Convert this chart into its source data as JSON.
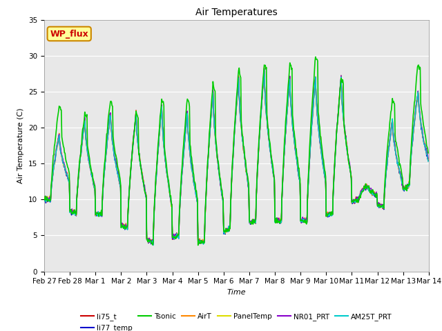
{
  "title": "Air Temperatures",
  "xlabel": "Time",
  "ylabel": "Air Temperature (C)",
  "ylim": [
    0,
    35
  ],
  "series": {
    "li75_t": {
      "color": "#cc0000",
      "lw": 1.0
    },
    "li77_temp": {
      "color": "#0000cc",
      "lw": 1.0
    },
    "Tsonic": {
      "color": "#00cc00",
      "lw": 1.2
    },
    "AirT": {
      "color": "#ff8800",
      "lw": 1.0
    },
    "PanelTemp": {
      "color": "#dddd00",
      "lw": 1.0
    },
    "NR01_PRT": {
      "color": "#8800cc",
      "lw": 1.0
    },
    "AM25T_PRT": {
      "color": "#00cccc",
      "lw": 1.0
    }
  },
  "annotation_text": "WP_flux",
  "annotation_color": "#cc0000",
  "annotation_bg": "#ffff99",
  "annotation_border": "#cc8800",
  "plot_bg": "#e8e8e8",
  "tick_labels": [
    "Feb 27",
    "Feb 28",
    "Mar 1",
    "Mar 2",
    "Mar 3",
    "Mar 4",
    "Mar 5",
    "Mar 6",
    "Mar 7",
    "Mar 8",
    "Mar 9",
    "Mar 10",
    "Mar 11",
    "Mar 12",
    "Mar 13",
    "Mar 14"
  ],
  "daily_peaks_base": [
    19,
    21,
    22,
    22,
    23,
    22,
    25,
    27,
    28,
    27,
    27,
    27,
    12,
    21,
    25
  ],
  "daily_peaks_tsonic": [
    23,
    22,
    24,
    22,
    24,
    24,
    26,
    28,
    29,
    29,
    30,
    27,
    12,
    24,
    29
  ],
  "daily_mins": [
    10,
    8,
    8,
    6,
    4,
    5,
    4,
    6,
    7,
    7,
    7,
    8,
    10,
    9,
    12
  ]
}
